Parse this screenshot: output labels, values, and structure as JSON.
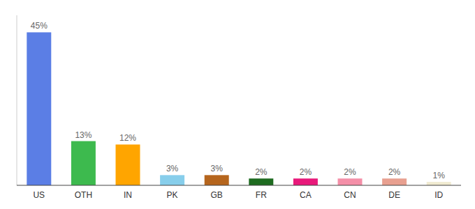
{
  "chart_data": {
    "type": "bar",
    "categories": [
      "US",
      "OTH",
      "IN",
      "PK",
      "GB",
      "FR",
      "CA",
      "CN",
      "DE",
      "ID"
    ],
    "values": [
      45,
      13,
      12,
      3,
      3,
      2,
      2,
      2,
      2,
      1
    ],
    "value_labels": [
      "45%",
      "13%",
      "12%",
      "3%",
      "3%",
      "2%",
      "2%",
      "2%",
      "2%",
      "1%"
    ],
    "colors": [
      "#5b7ee5",
      "#3dba4e",
      "#ffa500",
      "#87ceeb",
      "#b5651d",
      "#1e6b20",
      "#e8197a",
      "#f48fa8",
      "#e8a090",
      "#f0ead0"
    ],
    "ylim": [
      0,
      50
    ],
    "data_labels": true,
    "tick_labels": "x"
  }
}
